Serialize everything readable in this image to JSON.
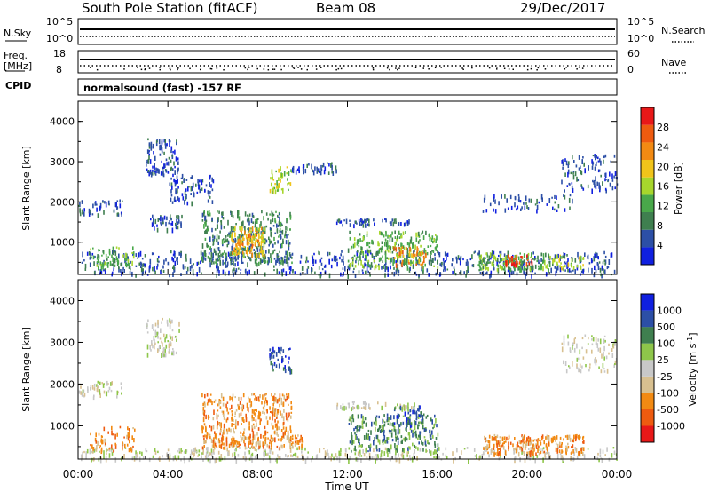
{
  "header": {
    "station": "South Pole Station (fitACF)",
    "beam": "Beam 08",
    "date": "29/Dec/2017"
  },
  "params": {
    "nsky_label": "N.Sky",
    "nsky_ticks": [
      "10^5",
      "10^0"
    ],
    "nsearch_label": "N.Search",
    "nsearch_ticks": [
      "10^5",
      "10^0"
    ],
    "freq_label_1": "Freq.",
    "freq_label_2": "[MHz]",
    "freq_ticks": [
      "18",
      "8"
    ],
    "nave_label": "Nave",
    "nave_ticks": [
      "60",
      "0"
    ],
    "cpid_label": "CPID",
    "cpid_text": "normalsound (fast) -157 RF"
  },
  "colors": {
    "power": [
      "#1020e0",
      "#2c4fa6",
      "#3f7f4f",
      "#49a84a",
      "#a7d62c",
      "#f0c41a",
      "#f28a13",
      "#ee5b10",
      "#e81818"
    ],
    "velocity": [
      "#e81818",
      "#ee5b10",
      "#f28a13",
      "#d8c090",
      "#c8c8c8",
      "#8ec64a",
      "#3f7f4f",
      "#2c4fa6",
      "#1020e0"
    ]
  },
  "chart_data": [
    {
      "type": "heatmap",
      "name": "power",
      "ylabel": "Slant Range [km]",
      "yticks": [
        "1000",
        "2000",
        "3000",
        "4000"
      ],
      "ylim": [
        200,
        4500
      ],
      "xlim": [
        0,
        24
      ],
      "colorbar_label": "Power [dB]",
      "colorbar_ticks": [
        "4",
        "8",
        "12",
        "16",
        "20",
        "24",
        "28"
      ],
      "clim": [
        0,
        32
      ],
      "regions": [
        {
          "t0": 0.1,
          "t1": 24,
          "r0": 200,
          "r1": 800,
          "level": 1,
          "density": 0.35
        },
        {
          "t0": 0.0,
          "t1": 2.0,
          "r0": 1700,
          "r1": 2100,
          "level": 1,
          "density": 0.45
        },
        {
          "t0": 0.5,
          "t1": 2.5,
          "r0": 400,
          "r1": 900,
          "level": 3,
          "density": 0.5
        },
        {
          "t0": 3.0,
          "t1": 4.5,
          "r0": 2700,
          "r1": 3600,
          "level": 1,
          "density": 0.6
        },
        {
          "t0": 3.2,
          "t1": 4.6,
          "r0": 1350,
          "r1": 1700,
          "level": 1,
          "density": 0.7
        },
        {
          "t0": 4.0,
          "t1": 6.0,
          "r0": 2000,
          "r1": 2700,
          "level": 1,
          "density": 0.45
        },
        {
          "t0": 5.5,
          "t1": 9.5,
          "r0": 500,
          "r1": 800,
          "level": 2,
          "density": 0.9
        },
        {
          "t0": 5.5,
          "t1": 9.5,
          "r0": 800,
          "r1": 1800,
          "level": 2,
          "density": 0.55
        },
        {
          "t0": 6.8,
          "t1": 8.3,
          "r0": 700,
          "r1": 1400,
          "level": 5,
          "density": 0.8
        },
        {
          "t0": 7.0,
          "t1": 8.0,
          "r0": 950,
          "r1": 1200,
          "level": 6,
          "density": 0.75
        },
        {
          "t0": 8.5,
          "t1": 9.5,
          "r0": 2300,
          "r1": 2900,
          "level": 4,
          "density": 0.6
        },
        {
          "t0": 9.5,
          "t1": 11.5,
          "r0": 2750,
          "r1": 3000,
          "level": 1,
          "density": 0.7
        },
        {
          "t0": 11.5,
          "t1": 15.0,
          "r0": 1450,
          "r1": 1600,
          "level": 1,
          "density": 0.8
        },
        {
          "t0": 12.0,
          "t1": 16.0,
          "r0": 400,
          "r1": 1300,
          "level": 3,
          "density": 0.55
        },
        {
          "t0": 14.0,
          "t1": 15.5,
          "r0": 450,
          "r1": 900,
          "level": 6,
          "density": 0.5
        },
        {
          "t0": 17.8,
          "t1": 21.0,
          "r0": 350,
          "r1": 750,
          "level": 3,
          "density": 0.85
        },
        {
          "t0": 19.0,
          "t1": 20.2,
          "r0": 450,
          "r1": 700,
          "level": 8,
          "density": 0.9
        },
        {
          "t0": 21.0,
          "t1": 22.5,
          "r0": 400,
          "r1": 700,
          "level": 4,
          "density": 0.6
        },
        {
          "t0": 18.0,
          "t1": 22.0,
          "r0": 1800,
          "r1": 2200,
          "level": 1,
          "density": 0.3
        },
        {
          "t0": 21.5,
          "t1": 24.0,
          "r0": 2300,
          "r1": 3200,
          "level": 1,
          "density": 0.35
        }
      ]
    },
    {
      "type": "heatmap",
      "name": "velocity",
      "ylabel": "Slant Range [km]",
      "yticks": [
        "1000",
        "2000",
        "3000",
        "4000"
      ],
      "ylim": [
        200,
        4500
      ],
      "xlim": [
        0,
        24
      ],
      "xticks": [
        "00:00",
        "04:00",
        "08:00",
        "12:00",
        "16:00",
        "20:00",
        "00:00"
      ],
      "xlabel": "Time UT",
      "colorbar_label": "Velocity [m s^-1]",
      "colorbar_ticks": [
        "-1000",
        "-500",
        "-100",
        "-25",
        "25",
        "100",
        "500",
        "1000"
      ],
      "regions": [
        {
          "t0": 0.1,
          "t1": 24,
          "r0": 200,
          "r1": 500,
          "level": 4,
          "density": 0.45
        },
        {
          "t0": 0.0,
          "t1": 2.0,
          "r0": 1700,
          "r1": 2100,
          "level": 4,
          "density": 0.45
        },
        {
          "t0": 0.5,
          "t1": 2.5,
          "r0": 400,
          "r1": 1000,
          "level": 2,
          "density": 0.4
        },
        {
          "t0": 3.0,
          "t1": 4.5,
          "r0": 2700,
          "r1": 3600,
          "level": 4,
          "density": 0.5
        },
        {
          "t0": 5.5,
          "t1": 10.0,
          "r0": 500,
          "r1": 800,
          "level": 2,
          "density": 0.9
        },
        {
          "t0": 5.5,
          "t1": 9.5,
          "r0": 800,
          "r1": 1800,
          "level": 2,
          "density": 0.55
        },
        {
          "t0": 8.5,
          "t1": 9.5,
          "r0": 2300,
          "r1": 2900,
          "level": 7,
          "density": 0.6
        },
        {
          "t0": 11.5,
          "t1": 15.0,
          "r0": 1450,
          "r1": 1600,
          "level": 4,
          "density": 0.7
        },
        {
          "t0": 12.0,
          "t1": 16.0,
          "r0": 400,
          "r1": 1300,
          "level": 6,
          "density": 0.55
        },
        {
          "t0": 14.0,
          "t1": 15.5,
          "r0": 900,
          "r1": 1500,
          "level": 7,
          "density": 0.45
        },
        {
          "t0": 18.0,
          "t1": 22.5,
          "r0": 350,
          "r1": 800,
          "level": 2,
          "density": 0.85
        },
        {
          "t0": 21.5,
          "t1": 24.0,
          "r0": 2300,
          "r1": 3200,
          "level": 4,
          "density": 0.3
        }
      ]
    }
  ]
}
